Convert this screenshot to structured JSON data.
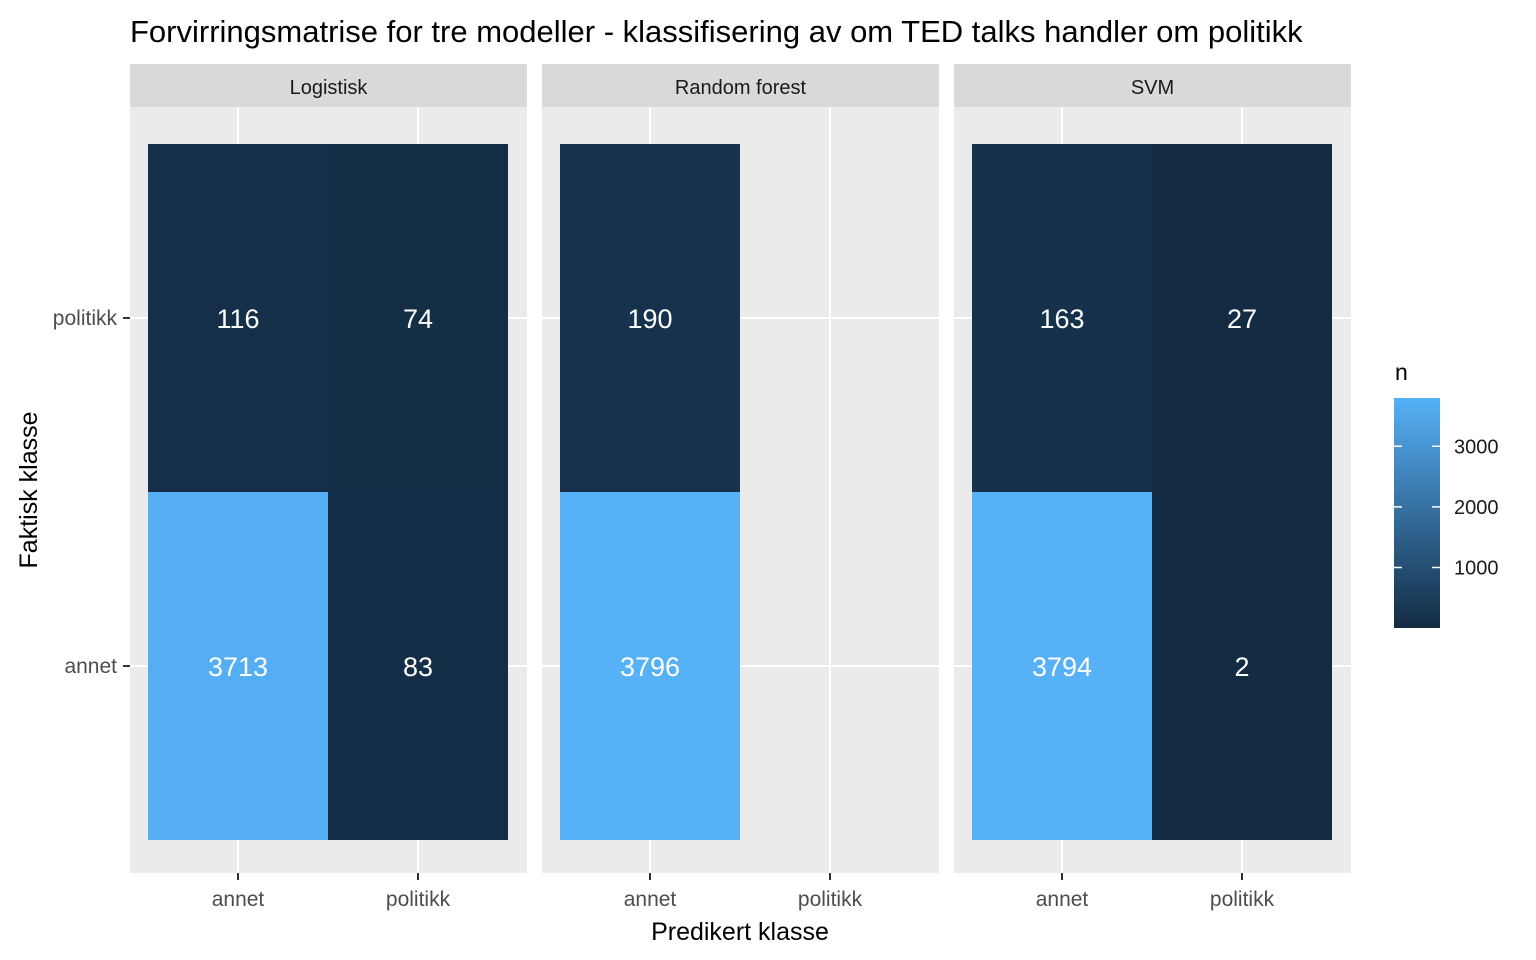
{
  "chart_data": {
    "type": "heatmap",
    "title": "Forvirringsmatrise for tre modeller - klassifisering av om TED talks handler om politikk",
    "xlabel": "Predikert klasse",
    "ylabel": "Faktisk klasse",
    "x_categories": [
      "annet",
      "politikk"
    ],
    "y_categories": [
      "annet",
      "politikk"
    ],
    "facets": [
      {
        "name": "Logistisk",
        "cells": [
          {
            "predicted": "annet",
            "actual": "politikk",
            "n": 116
          },
          {
            "predicted": "politikk",
            "actual": "politikk",
            "n": 74
          },
          {
            "predicted": "annet",
            "actual": "annet",
            "n": 3713
          },
          {
            "predicted": "politikk",
            "actual": "annet",
            "n": 83
          }
        ]
      },
      {
        "name": "Random forest",
        "cells": [
          {
            "predicted": "annet",
            "actual": "politikk",
            "n": 190
          },
          {
            "predicted": "annet",
            "actual": "annet",
            "n": 3796
          }
        ]
      },
      {
        "name": "SVM",
        "cells": [
          {
            "predicted": "annet",
            "actual": "politikk",
            "n": 163
          },
          {
            "predicted": "politikk",
            "actual": "politikk",
            "n": 27
          },
          {
            "predicted": "annet",
            "actual": "annet",
            "n": 3794
          },
          {
            "predicted": "politikk",
            "actual": "annet",
            "n": 2
          }
        ]
      }
    ],
    "legend": {
      "title": "n",
      "ticks": [
        "1000",
        "2000",
        "3000"
      ],
      "tick_values": [
        1000,
        2000,
        3000
      ],
      "range": [
        2,
        3796
      ],
      "position": "right"
    },
    "colors": {
      "low": "#132B43",
      "high": "#56B1F7",
      "panel_bg": "#EBEBEB",
      "strip_bg": "#D9D9D9",
      "grid": "#FFFFFF",
      "cell_text": "#FFFFFF"
    },
    "grid": true
  }
}
